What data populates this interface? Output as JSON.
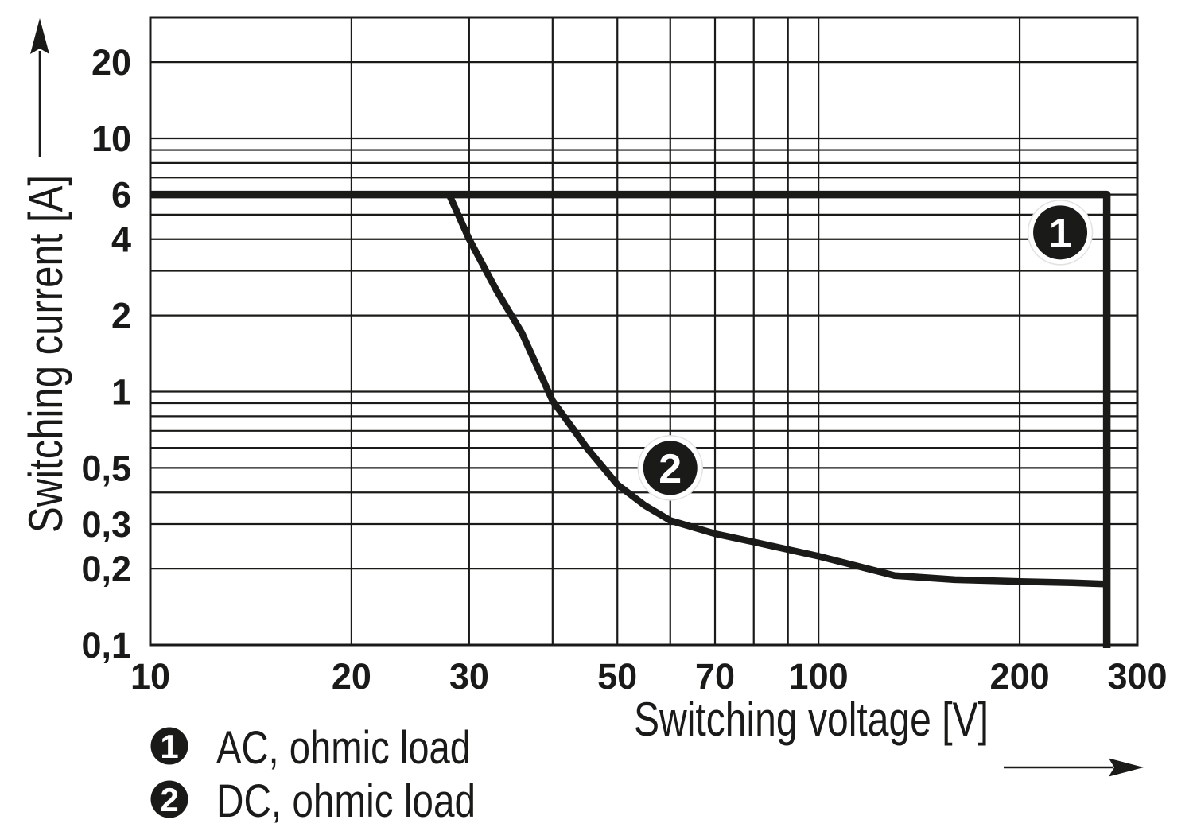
{
  "figure": {
    "background_color": "#ffffff",
    "ink_color": "#1a1a18"
  },
  "chart_data": {
    "type": "line",
    "x_scale": "log",
    "y_scale": "log",
    "xlabel": "Switching voltage [V]",
    "ylabel": "Switching current [A]",
    "xlim": [
      10,
      300
    ],
    "ylim": [
      0.1,
      30
    ],
    "grid": true,
    "x_tick_labels": [
      {
        "v": 10,
        "label": "10"
      },
      {
        "v": 20,
        "label": "20"
      },
      {
        "v": 30,
        "label": "30"
      },
      {
        "v": 50,
        "label": "50"
      },
      {
        "v": 70,
        "label": "70"
      },
      {
        "v": 100,
        "label": "100"
      },
      {
        "v": 200,
        "label": "200"
      },
      {
        "v": 300,
        "label": "300"
      }
    ],
    "y_tick_labels": [
      {
        "v": 20,
        "label": "20"
      },
      {
        "v": 10,
        "label": "10"
      },
      {
        "v": 6,
        "label": "6"
      },
      {
        "v": 4,
        "label": "4"
      },
      {
        "v": 2,
        "label": "2"
      },
      {
        "v": 1,
        "label": "1"
      },
      {
        "v": 0.5,
        "label": "0,5"
      },
      {
        "v": 0.3,
        "label": "0,3"
      },
      {
        "v": 0.2,
        "label": "0,2"
      },
      {
        "v": 0.1,
        "label": "0,1"
      }
    ],
    "x_gridlines": [
      20,
      30,
      40,
      50,
      60,
      70,
      80,
      90,
      100,
      200
    ],
    "y_gridlines": [
      0.2,
      0.3,
      0.4,
      0.5,
      0.6,
      0.7,
      0.8,
      0.9,
      1,
      2,
      3,
      4,
      5,
      6,
      7,
      8,
      9,
      10,
      20
    ],
    "series": [
      {
        "id": "1",
        "name": "AC, ohmic load",
        "points": [
          [
            10,
            6
          ],
          [
            270,
            6
          ],
          [
            270,
            0.1
          ]
        ]
      },
      {
        "id": "2",
        "name": "DC, ohmic load",
        "points": [
          [
            28,
            6
          ],
          [
            30,
            4
          ],
          [
            33,
            2.5
          ],
          [
            36,
            1.7
          ],
          [
            40,
            0.92
          ],
          [
            45,
            0.6
          ],
          [
            50,
            0.43
          ],
          [
            55,
            0.355
          ],
          [
            60,
            0.31
          ],
          [
            70,
            0.275
          ],
          [
            80,
            0.255
          ],
          [
            100,
            0.224
          ],
          [
            130,
            0.188
          ],
          [
            160,
            0.181
          ],
          [
            200,
            0.178
          ],
          [
            240,
            0.176
          ],
          [
            270,
            0.174
          ]
        ]
      }
    ],
    "curve_markers": [
      {
        "label": "1",
        "v": 230,
        "a": 4.25
      },
      {
        "label": "2",
        "v": 60,
        "a": 0.5
      }
    ],
    "legend": [
      {
        "symbol": "1",
        "label": "AC, ohmic load"
      },
      {
        "symbol": "2",
        "label": "DC, ohmic load"
      }
    ]
  }
}
